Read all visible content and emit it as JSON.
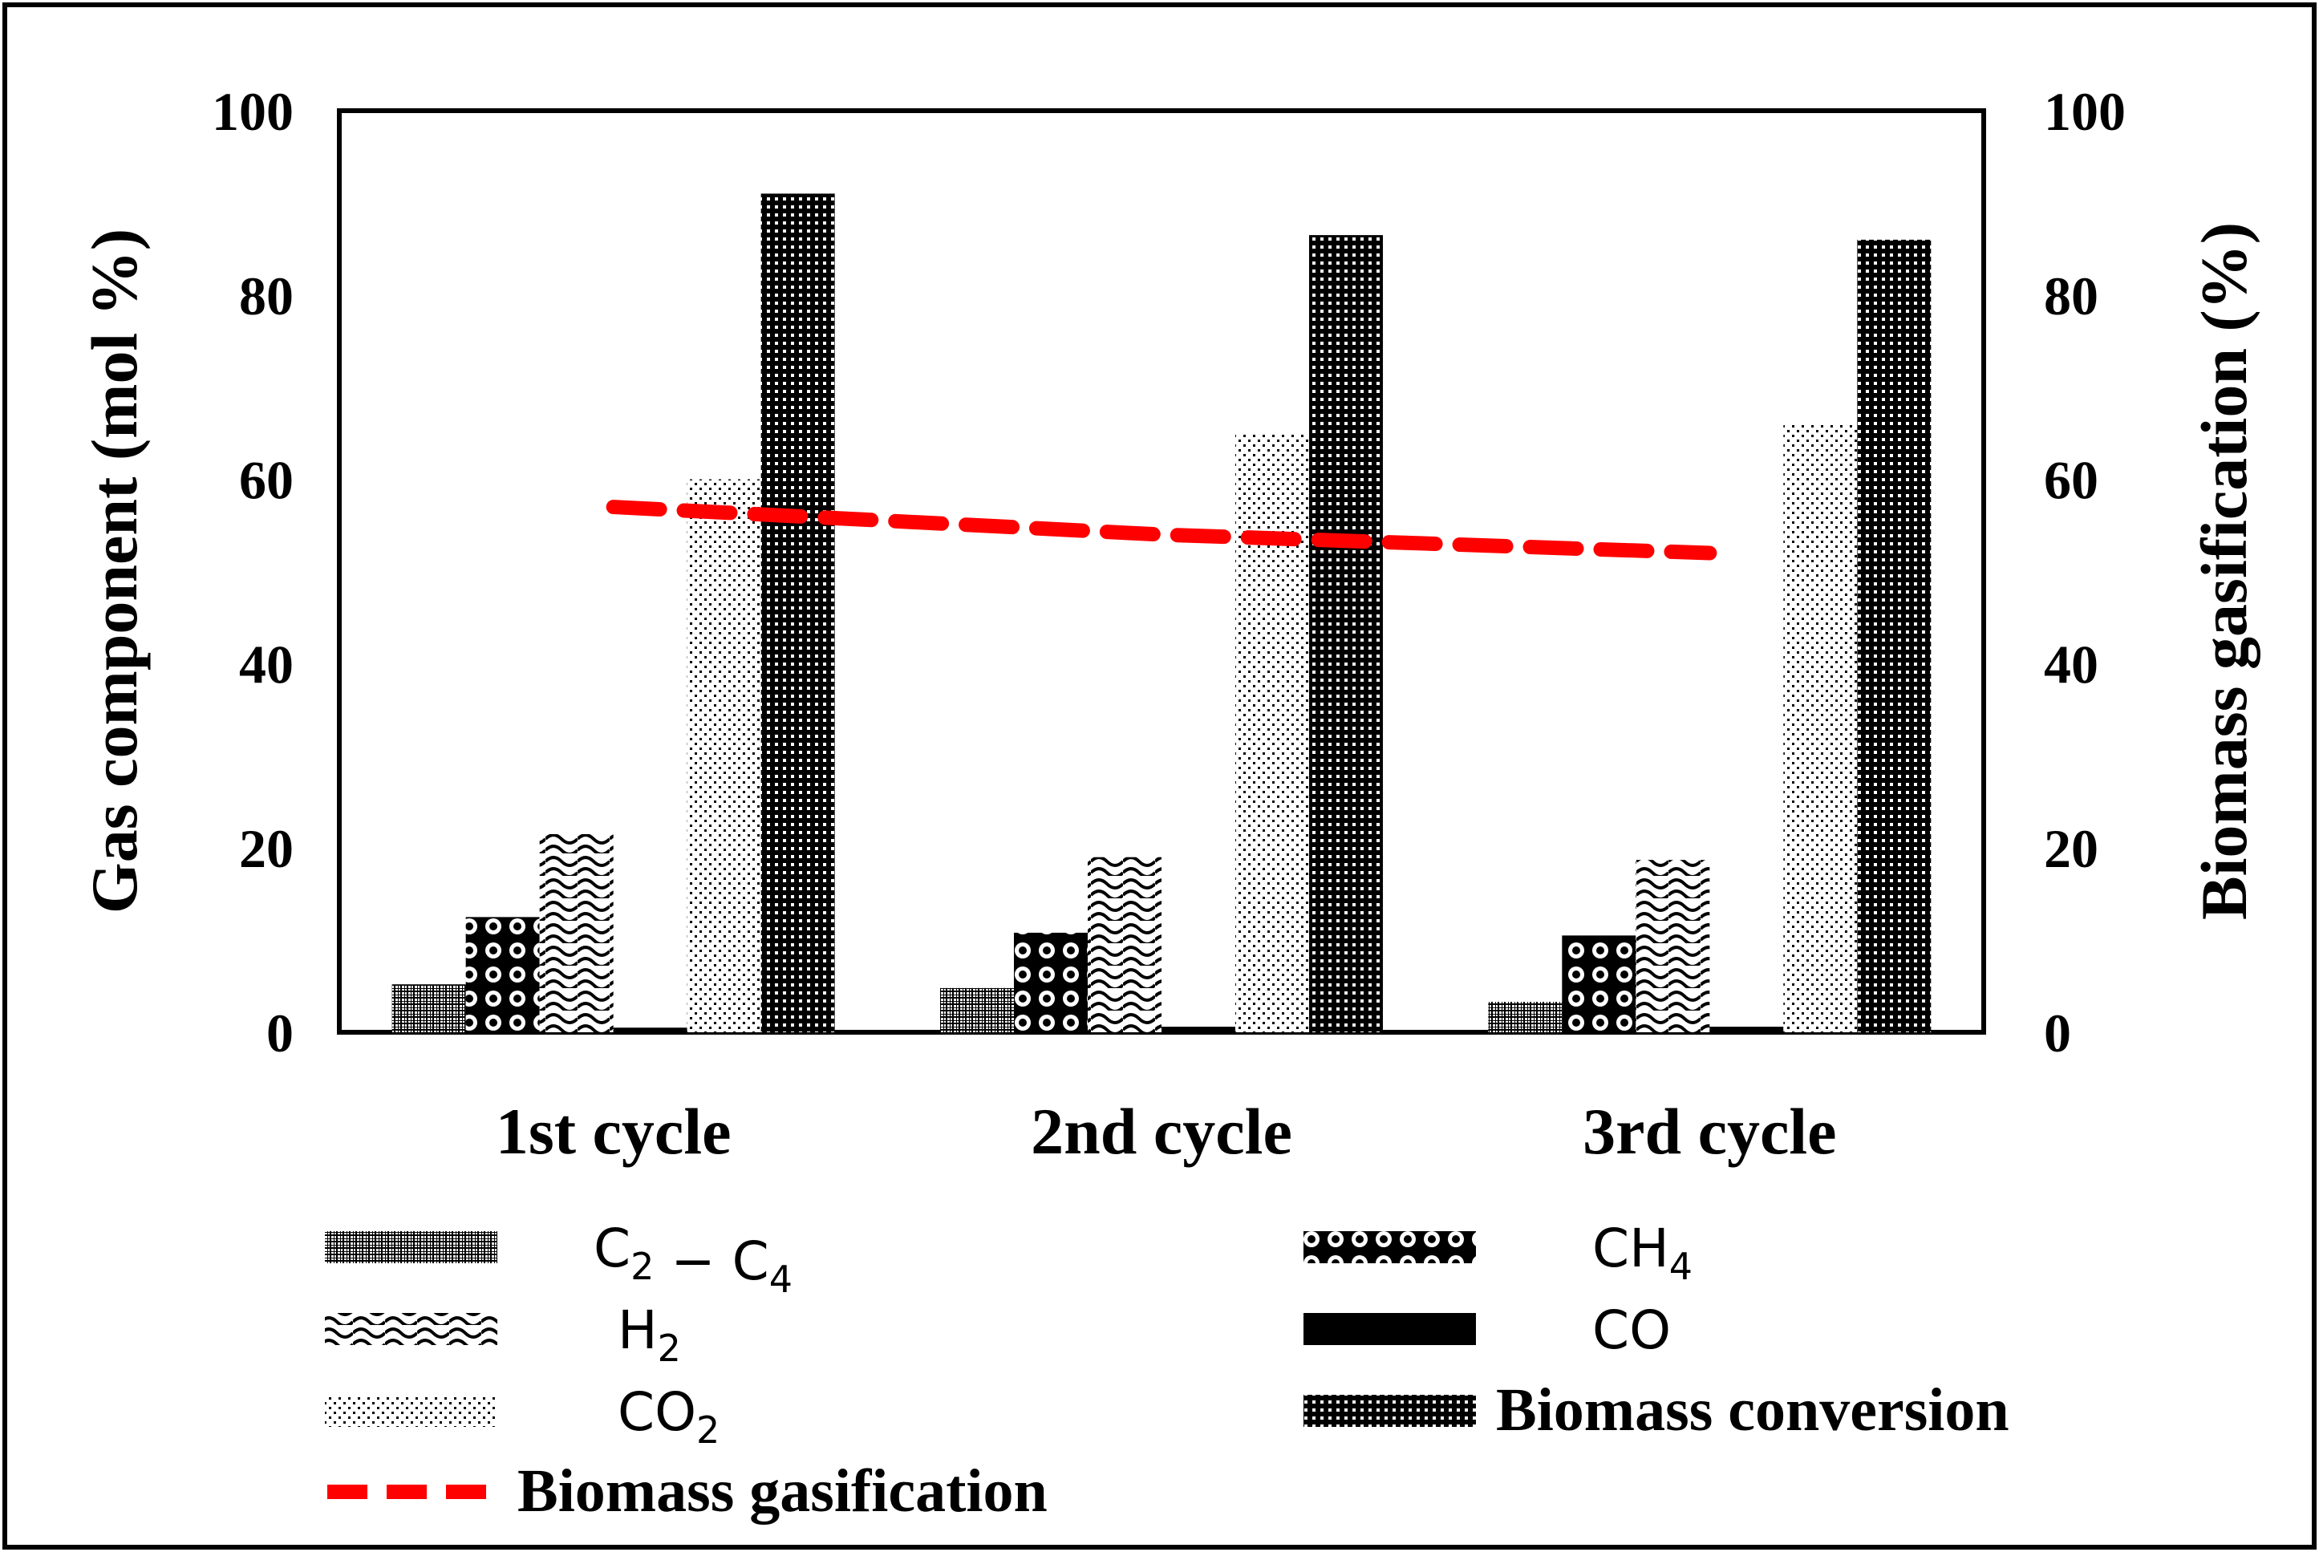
{
  "chart_data": {
    "type": "bar",
    "categories": [
      "1st cycle",
      "2nd cycle",
      "3rd cycle"
    ],
    "series": [
      {
        "name": "C2 - C4",
        "legend_main": "C",
        "legend_parts": [
          "2",
          " − C",
          "4"
        ],
        "pattern": "grid-fine",
        "axis": "left",
        "values": [
          5.2,
          4.8,
          3.3
        ]
      },
      {
        "name": "CH4",
        "legend_main": "CH",
        "legend_parts": [
          "4"
        ],
        "pattern": "circles",
        "axis": "left",
        "values": [
          12.5,
          10.8,
          10.5
        ]
      },
      {
        "name": "H2",
        "legend_main": "H",
        "legend_parts": [
          "2"
        ],
        "pattern": "wave",
        "axis": "left",
        "values": [
          21.5,
          19.0,
          18.7
        ]
      },
      {
        "name": "CO",
        "legend_main": "CO",
        "legend_parts": [],
        "pattern": "solid",
        "axis": "left",
        "values": [
          0.5,
          0.6,
          0.6
        ]
      },
      {
        "name": "CO2",
        "legend_main": "CO",
        "legend_parts": [
          "2"
        ],
        "pattern": "dots",
        "axis": "left",
        "values": [
          60.0,
          65.0,
          66.0
        ]
      },
      {
        "name": "Biomass conversion",
        "legend_main": "Biomass conversion",
        "legend_parts": [],
        "pattern": "grid",
        "axis": "left",
        "values": [
          91.0,
          86.5,
          86.0
        ]
      }
    ],
    "line_series": {
      "name": "Biomass gasification",
      "axis": "right",
      "style": "dashed",
      "color": "#ff0000",
      "values": [
        57.0,
        54.0,
        52.0
      ]
    },
    "ylabel": "Gas component (mol %)",
    "y2label": "Biomass gasification (%)",
    "ylim": [
      0,
      100
    ],
    "y2lim": [
      0,
      100
    ],
    "yticks": [
      "0",
      "20",
      "40",
      "60",
      "80",
      "100"
    ],
    "y2ticks": [
      "0",
      "20",
      "40",
      "60",
      "80",
      "100"
    ],
    "legend_position": "bottom",
    "grid": false
  }
}
